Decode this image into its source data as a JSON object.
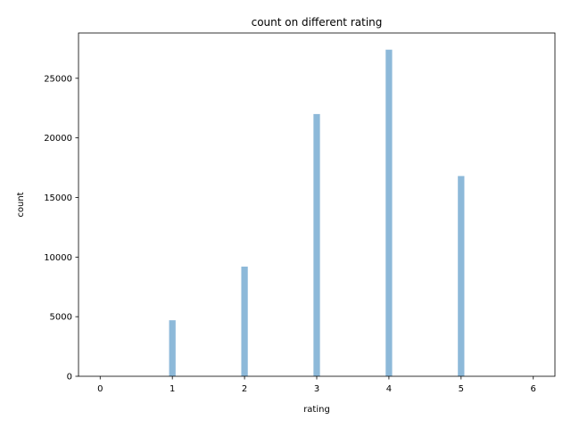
{
  "chart_data": {
    "type": "bar",
    "title": "count on different rating",
    "xlabel": "rating",
    "ylabel": "count",
    "xlim": [
      -0.3,
      6.3
    ],
    "ylim": [
      0,
      28800
    ],
    "x_ticks": [
      0,
      1,
      2,
      3,
      4,
      5,
      6
    ],
    "x_tick_labels": [
      "0",
      "1",
      "2",
      "3",
      "4",
      "5",
      "6"
    ],
    "y_ticks": [
      0,
      5000,
      10000,
      15000,
      20000,
      25000
    ],
    "y_tick_labels": [
      "0",
      "5000",
      "10000",
      "15000",
      "20000",
      "25000"
    ],
    "bar_width": 0.09,
    "grid": false,
    "series": [
      {
        "name": "count",
        "color": "#8db9d9",
        "x": [
          1,
          2,
          3,
          4,
          5
        ],
        "values": [
          4700,
          9200,
          22000,
          27400,
          16800
        ]
      }
    ]
  }
}
